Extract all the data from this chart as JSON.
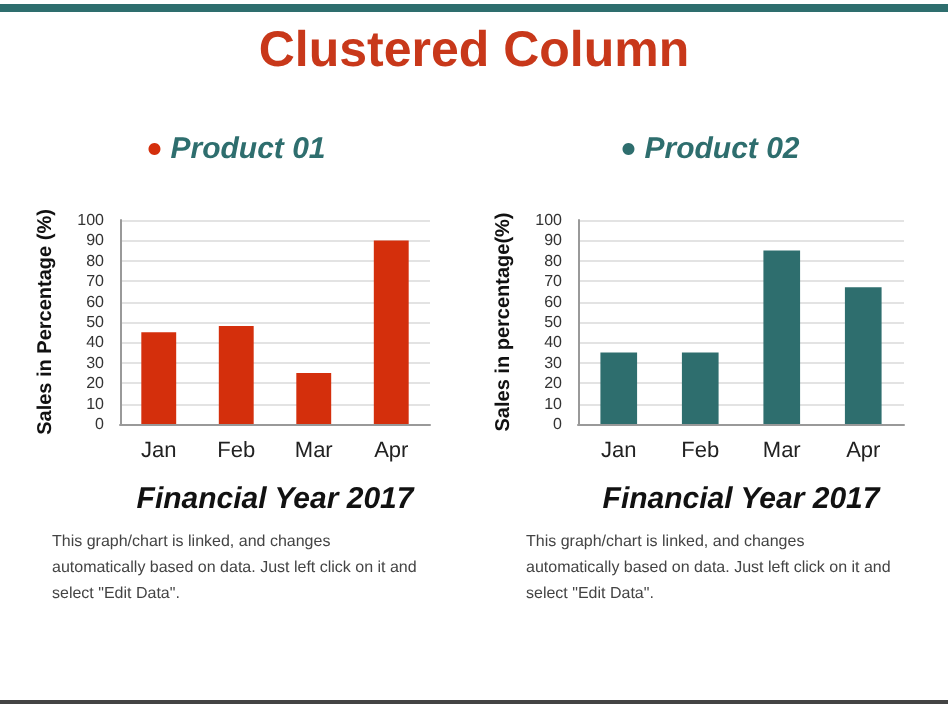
{
  "chart_data": [
    {
      "type": "bar",
      "title": "Clustered Column",
      "categories": [
        "Jan",
        "Feb",
        "Mar",
        "Apr"
      ],
      "series": [
        {
          "name": "Product 01",
          "color": "#d42f0c",
          "values": [
            45,
            48,
            25,
            90
          ]
        }
      ],
      "ylabel": "Sales in Percentage (%)",
      "xlabel": "Financial Year 2017",
      "ylim": [
        0,
        100
      ],
      "yticks": [
        0,
        10,
        20,
        30,
        40,
        50,
        60,
        70,
        80,
        90,
        100
      ],
      "grid": "y",
      "legend": "top",
      "annotations": [
        "This graph/chart is linked, and changes automatically based on data. Just left click on it and select \"Edit Data\"."
      ]
    },
    {
      "type": "bar",
      "categories": [
        "Jan",
        "Feb",
        "Mar",
        "Apr"
      ],
      "series": [
        {
          "name": "Product 02",
          "color": "#2e6e6e",
          "values": [
            35,
            35,
            85,
            67
          ]
        }
      ],
      "ylabel": "Sales in percentage(%)",
      "xlabel": "Financial Year 2017",
      "ylim": [
        0,
        100
      ],
      "yticks": [
        0,
        10,
        20,
        30,
        40,
        50,
        60,
        70,
        80,
        90,
        100
      ],
      "grid": "y",
      "legend": "top",
      "annotations": [
        "This graph/chart is linked, and changes automatically based on data. Just left click on it and select \"Edit Data\"."
      ]
    }
  ]
}
